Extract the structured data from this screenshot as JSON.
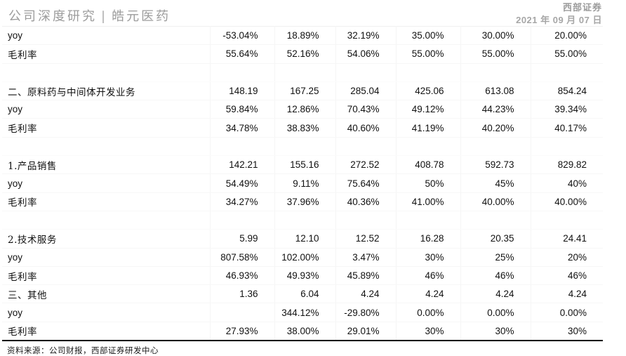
{
  "header": {
    "title_left": "公司深度研究",
    "title_sep": "|",
    "title_right": "皓元医药",
    "brand": "西部证券",
    "date": "2021 年 09 月 07 日"
  },
  "table": {
    "rows": [
      {
        "type": "yoy",
        "label": "yoy",
        "values": [
          "-53.04%",
          "18.89%",
          "32.19%",
          "35.00%",
          "30.00%",
          "20.00%"
        ]
      },
      {
        "type": "margin",
        "label": "毛利率",
        "values": [
          "55.64%",
          "52.16%",
          "54.06%",
          "55.00%",
          "55.00%",
          "55.00%"
        ]
      },
      {
        "type": "spacer",
        "label": "",
        "values": [
          "",
          "",
          "",
          "",
          "",
          ""
        ]
      },
      {
        "type": "section",
        "label": "二、原料药与中间体开发业务",
        "values": [
          "148.19",
          "167.25",
          "285.04",
          "425.06",
          "613.08",
          "854.24"
        ]
      },
      {
        "type": "yoy",
        "label": "yoy",
        "values": [
          "59.84%",
          "12.86%",
          "70.43%",
          "49.12%",
          "44.23%",
          "39.34%"
        ]
      },
      {
        "type": "margin",
        "label": "毛利率",
        "values": [
          "34.78%",
          "38.83%",
          "40.60%",
          "41.19%",
          "40.20%",
          "40.17%"
        ]
      },
      {
        "type": "spacer",
        "label": "",
        "values": [
          "",
          "",
          "",
          "",
          "",
          ""
        ]
      },
      {
        "type": "section",
        "label": "1.产品销售",
        "values": [
          "142.21",
          "155.16",
          "272.52",
          "408.78",
          "592.73",
          "829.82"
        ]
      },
      {
        "type": "yoy",
        "label": "yoy",
        "values": [
          "54.49%",
          "9.11%",
          "75.64%",
          "50%",
          "45%",
          "40%"
        ]
      },
      {
        "type": "margin",
        "label": "毛利率",
        "values": [
          "34.27%",
          "37.96%",
          "40.36%",
          "41.00%",
          "40.00%",
          "40.00%"
        ]
      },
      {
        "type": "spacer",
        "label": "",
        "values": [
          "",
          "",
          "",
          "",
          "",
          ""
        ]
      },
      {
        "type": "section",
        "label": "2.技术服务",
        "values": [
          "5.99",
          "12.10",
          "12.52",
          "16.28",
          "20.35",
          "24.41"
        ]
      },
      {
        "type": "yoy",
        "label": "yoy",
        "values": [
          "807.58%",
          "102.00%",
          "3.47%",
          "30%",
          "25%",
          "20%"
        ]
      },
      {
        "type": "margin",
        "label": "毛利率",
        "values": [
          "46.93%",
          "49.93%",
          "45.89%",
          "46%",
          "46%",
          "46%"
        ]
      },
      {
        "type": "section",
        "label": "三、其他",
        "values": [
          "1.36",
          "6.04",
          "4.24",
          "4.24",
          "4.24",
          "4.24"
        ]
      },
      {
        "type": "yoy",
        "label": "yoy",
        "values": [
          "",
          "344.12%",
          "-29.80%",
          "0.00%",
          "0.00%",
          "0.00%"
        ]
      },
      {
        "type": "margin",
        "label": "毛利率",
        "values": [
          "27.93%",
          "38.00%",
          "29.01%",
          "30%",
          "30%",
          "30%"
        ]
      }
    ]
  },
  "footer": {
    "source": "资料来源：公司财报，西部证券研发中心"
  }
}
